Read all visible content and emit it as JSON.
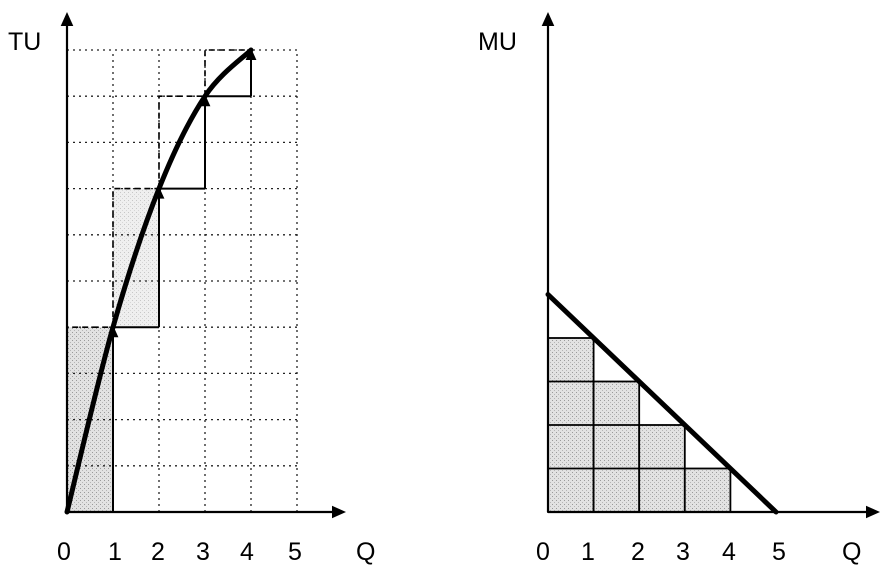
{
  "chart_data": [
    {
      "type": "line",
      "xlabel": "Q",
      "ylabel": "TU",
      "x_ticks": [
        "0",
        "1",
        "2",
        "3",
        "4",
        "5"
      ],
      "xlim": [
        0,
        5.7
      ],
      "ylim": [
        0,
        10
      ],
      "grid": true,
      "curve": {
        "x": [
          0,
          1,
          2,
          3,
          4
        ],
        "y": [
          0,
          4,
          7,
          9,
          10
        ]
      },
      "shaded_units": 4,
      "marginal_steps": [
        {
          "from": 0,
          "to": 1,
          "gain": 4
        },
        {
          "from": 1,
          "to": 2,
          "gain": 3
        },
        {
          "from": 2,
          "to": 3,
          "gain": 2
        },
        {
          "from": 3,
          "to": 4,
          "gain": 1
        }
      ]
    },
    {
      "type": "bar",
      "xlabel": "Q",
      "ylabel": "MU",
      "x_ticks": [
        "0",
        "1",
        "2",
        "3",
        "4",
        "5"
      ],
      "xlim": [
        0,
        5.8
      ],
      "ylim": [
        0,
        10
      ],
      "categories": [
        "1",
        "2",
        "3",
        "4"
      ],
      "values": [
        4,
        3,
        2,
        1
      ],
      "line": {
        "x": [
          0,
          5
        ],
        "y": [
          5,
          0
        ]
      }
    }
  ]
}
